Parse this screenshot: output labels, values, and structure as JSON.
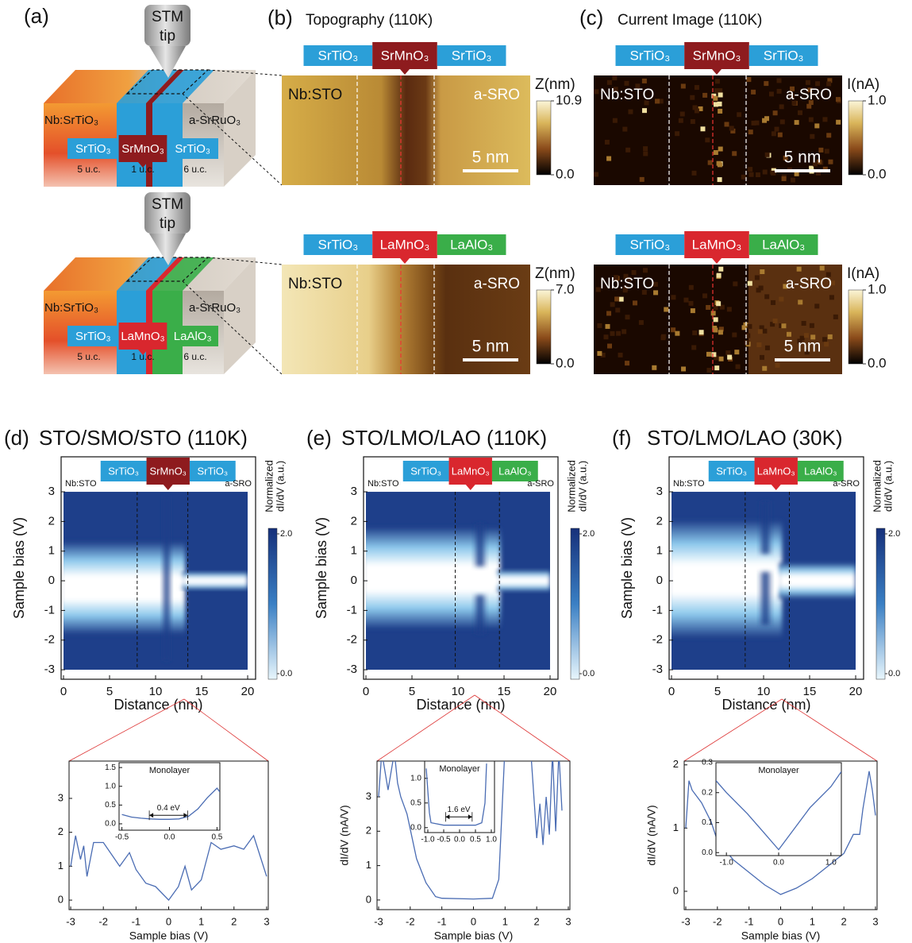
{
  "figure": {
    "a": {
      "label": "(a)",
      "rows": [
        {
          "stm": "STM",
          "tip": "tip",
          "left": "Nb:SrTiO₃",
          "right": "a-SrRuO₃",
          "layers": [
            "SrTiO₃",
            "SrMnO₃",
            "SrTiO₃"
          ],
          "colors": [
            "#2b9fd8",
            "#8e1b1e",
            "#2b9fd8"
          ],
          "thickness": [
            "5 u.c.",
            "1 u.c.",
            "6 u.c."
          ]
        },
        {
          "stm": "STM",
          "tip": "tip",
          "left": "Nb:SrTiO₃",
          "right": "a-SrRuO₃",
          "layers": [
            "SrTiO₃",
            "LaMnO₃",
            "LaAlO₃"
          ],
          "colors": [
            "#2b9fd8",
            "#d9272e",
            "#3aae49"
          ],
          "thickness": [
            "5 u.c.",
            "1 u.c.",
            "6 u.c."
          ]
        }
      ]
    },
    "images": [
      {
        "label": "(b)",
        "title": "Topography (110K)",
        "rows": [
          {
            "layers": [
              "SrTiO₃",
              "SrMnO₃",
              "SrTiO₃"
            ],
            "colors": [
              "#2b9fd8",
              "#8e1b1e",
              "#2b9fd8"
            ],
            "left": "Nb:STO",
            "right": "a-SRO",
            "scale": "5 nm",
            "cbar_label": "Z(nm)",
            "cbar_ticks": [
              {
                "value": 10.9,
                "label": "10.9"
              },
              {
                "value": 0,
                "label": "0.0"
              }
            ]
          },
          {
            "layers": [
              "SrTiO₃",
              "LaMnO₃",
              "LaAlO₃"
            ],
            "colors": [
              "#2b9fd8",
              "#d9272e",
              "#3aae49"
            ],
            "left": "Nb:STO",
            "right": "a-SRO",
            "scale": "5 nm",
            "cbar_label": "Z(nm)",
            "cbar_ticks": [
              {
                "value": 7.0,
                "label": "7.0"
              },
              {
                "value": 0,
                "label": "0.0"
              }
            ]
          }
        ]
      },
      {
        "label": "(c)",
        "title": "Current Image (110K)",
        "rows": [
          {
            "layers": [
              "SrTiO₃",
              "SrMnO₃",
              "SrTiO₃"
            ],
            "colors": [
              "#2b9fd8",
              "#8e1b1e",
              "#2b9fd8"
            ],
            "left": "Nb:STO",
            "right": "a-SRO",
            "scale": "5 nm",
            "cbar_label": "I(nA)",
            "cbar_ticks": [
              {
                "value": 1.0,
                "label": "1.0"
              },
              {
                "value": 0,
                "label": "0.0"
              }
            ]
          },
          {
            "layers": [
              "SrTiO₃",
              "LaMnO₃",
              "LaAlO₃"
            ],
            "colors": [
              "#2b9fd8",
              "#d9272e",
              "#3aae49"
            ],
            "left": "Nb:STO",
            "right": "a-SRO",
            "scale": "5 nm",
            "cbar_label": "I(nA)",
            "cbar_ticks": [
              {
                "value": 1.0,
                "label": "1.0"
              },
              {
                "value": 0,
                "label": "0.0"
              }
            ]
          }
        ]
      }
    ],
    "maps": [
      {
        "label": "(d)",
        "title": "STO/SMO/STO (110K)",
        "layers": [
          "SrTiO₃",
          "SrMnO₃",
          "SrTiO₃"
        ],
        "colors": [
          "#2b9fd8",
          "#8e1b1e",
          "#2b9fd8"
        ],
        "left": "Nb:STO",
        "right": "a-SRO",
        "xlabel": "Distance (nm)",
        "ylabel": "Sample bias (V)",
        "xlim": [
          -0.26,
          20.86
        ],
        "ylim": [
          -3.32,
          4.18
        ],
        "xticks": [
          0,
          5,
          10,
          15,
          20
        ],
        "yticks": [
          3,
          2,
          1,
          0,
          -1,
          -2,
          -3
        ],
        "cbar_label": [
          "Normalized",
          "dI/dV (a.u.)"
        ],
        "cbar_ticks": [
          {
            "value": 2,
            "label": "2.0"
          },
          {
            "value": 0,
            "label": "0.0"
          }
        ]
      },
      {
        "label": "(e)",
        "title": "STO/LMO/LAO (110K)",
        "layers": [
          "SrTiO₃",
          "LaMnO₃",
          "LaAlO₃"
        ],
        "colors": [
          "#2b9fd8",
          "#d9272e",
          "#3aae49"
        ],
        "left": "Nb:STO",
        "right": "a-SRO",
        "xlabel": "Distance (nm)",
        "ylabel": "Sample bias (V)",
        "xlim": [
          -0.26,
          20.86
        ],
        "ylim": [
          -3.32,
          4.18
        ],
        "xticks": [
          0,
          5,
          10,
          15,
          20
        ],
        "yticks": [
          3,
          2,
          1,
          0,
          -1,
          -2,
          -3
        ],
        "cbar_label": [
          "Normalized",
          "dI/dV (a.u.)"
        ],
        "cbar_ticks": [
          {
            "value": 2,
            "label": "2.0"
          },
          {
            "value": 0,
            "label": "0.0"
          }
        ]
      },
      {
        "label": "(f)",
        "title": "STO/LMO/LAO (30K)",
        "layers": [
          "SrTiO₃",
          "LaMnO₃",
          "LaAlO₃"
        ],
        "colors": [
          "#2b9fd8",
          "#d9272e",
          "#3aae49"
        ],
        "left": "Nb:STO",
        "right": "a-SRO",
        "xlabel": "Distance (nm)",
        "ylabel": "Sample bias (V)",
        "xlim": [
          -0.26,
          20.86
        ],
        "ylim": [
          -3.32,
          4.18
        ],
        "xticks": [
          0,
          5,
          10,
          15,
          20
        ],
        "yticks": [
          3,
          2,
          1,
          0,
          -1,
          -2,
          -3
        ],
        "cbar_label": [
          "Normalized",
          "dI/dV (a.u.)"
        ],
        "cbar_ticks": [
          {
            "value": 2,
            "label": "2.0"
          },
          {
            "value": 0,
            "label": "0.0"
          }
        ]
      }
    ]
  },
  "chart_data": [
    {
      "type": "line",
      "xlabel": "Sample bias (V)",
      "x": [
        -3,
        -2.85,
        -2.7,
        -2.6,
        -2.5,
        -2.3,
        -2.0,
        -1.5,
        -1.2,
        -1.0,
        -0.7,
        -0.4,
        0,
        0.3,
        0.5,
        0.7,
        1.0,
        1.3,
        1.6,
        2.0,
        2.3,
        2.6,
        2.8,
        3
      ],
      "series": [
        {
          "color": "#4a6cb3",
          "values": [
            1.0,
            1.9,
            1.2,
            1.6,
            0.7,
            1.7,
            1.7,
            1.0,
            1.4,
            0.9,
            0.5,
            0.4,
            0.0,
            0.4,
            1.0,
            0.3,
            0.6,
            1.7,
            1.5,
            1.6,
            1.5,
            1.9,
            1.3,
            0.7
          ]
        }
      ],
      "xlim": [
        -3.05,
        3.05
      ],
      "ylim": [
        -0.28,
        4.1
      ],
      "xticks": [
        -3,
        -2,
        -1,
        0,
        1,
        2,
        3
      ],
      "yticks": [
        0,
        1,
        2,
        3
      ]
    },
    {
      "type": "line",
      "title": "Monolayer",
      "annotation": "0.4 eV",
      "x": [
        -0.5,
        -0.4,
        -0.3,
        -0.2,
        -0.1,
        0,
        0.1,
        0.2,
        0.3,
        0.4,
        0.5,
        0.53
      ],
      "series": [
        {
          "color": "#4a6cb3",
          "values": [
            0.25,
            0.18,
            0.15,
            0.13,
            0.12,
            0.12,
            0.13,
            0.2,
            0.4,
            0.7,
            0.95,
            0.85
          ]
        }
      ],
      "xlim": [
        -0.53,
        0.53
      ],
      "ylim": [
        -0.17,
        1.63
      ],
      "xticks": [
        -0.5,
        {
          "value": 0,
          "label": "0.0"
        },
        0.5
      ],
      "yticks": [
        {
          "value": 0,
          "label": "0.0"
        },
        0.5,
        {
          "value": 1,
          "label": "1.0"
        },
        1.5
      ]
    },
    {
      "type": "line",
      "xlabel": "Sample bias (V)",
      "ylabel": "dI/dV (nA/V)",
      "x": [
        -3,
        -2.9,
        -2.7,
        -2.5,
        -2.4,
        -2.3,
        -2.1,
        -1.8,
        -1.5,
        -1.2,
        -1.0,
        0,
        0.6,
        0.8,
        1.0,
        1.8,
        2.0,
        2.1,
        2.2,
        2.3,
        2.4,
        2.5,
        2.6,
        2.7,
        2.8
      ],
      "series": [
        {
          "color": "#4a6cb3",
          "values": [
            3.0,
            4.3,
            3.2,
            4.3,
            3.4,
            3.0,
            2.5,
            1.2,
            0.5,
            0.1,
            0.05,
            0.03,
            0.05,
            0.6,
            4.5,
            4.5,
            1.8,
            2.8,
            1.6,
            3.0,
            1.9,
            4.3,
            2.0,
            4.3,
            2.6
          ]
        }
      ],
      "xlim": [
        -3.05,
        3.05
      ],
      "ylim": [
        -0.28,
        4.04
      ],
      "xticks": [
        -3,
        -2,
        -1,
        0,
        1,
        2,
        3
      ],
      "yticks": [
        0,
        1,
        2,
        3
      ]
    },
    {
      "type": "line",
      "title": "Monolayer",
      "annotation": "1.6 eV",
      "x": [
        -1.05,
        -0.95,
        -0.9,
        -0.5,
        0,
        0.5,
        0.7,
        0.8,
        0.85
      ],
      "series": [
        {
          "color": "#4a6cb3",
          "values": [
            1.2,
            0.3,
            0.1,
            0.05,
            0.05,
            0.05,
            0.1,
            0.5,
            1.3
          ]
        }
      ],
      "xlim": [
        -1.1,
        1.1
      ],
      "ylim": [
        -0.1,
        1.35
      ],
      "xticks": [
        {
          "value": -1,
          "label": "-1.0"
        },
        -0.5,
        {
          "value": 0,
          "label": "0.0"
        },
        0.5,
        {
          "value": 1,
          "label": "1.0"
        }
      ],
      "yticks": [
        {
          "value": 0,
          "label": "0.0"
        },
        0.5,
        {
          "value": 1,
          "label": "1.0"
        }
      ]
    },
    {
      "type": "line",
      "xlabel": "Sample bias (V)",
      "ylabel": "dI/dV (nA/V)",
      "x": [
        -3,
        -2.9,
        -2.8,
        -2.5,
        -2.2,
        -2.0,
        -1.5,
        -1.0,
        -0.5,
        0,
        0.5,
        1.0,
        1.5,
        2.0,
        2.3,
        2.5,
        2.6,
        2.8,
        2.9,
        3
      ],
      "series": [
        {
          "color": "#4a6cb3",
          "values": [
            1.0,
            1.75,
            1.6,
            1.4,
            1.1,
            0.8,
            0.5,
            0.3,
            0.1,
            -0.05,
            0.05,
            0.2,
            0.4,
            0.6,
            0.9,
            0.9,
            1.3,
            1.9,
            1.6,
            1.2
          ]
        }
      ],
      "xlim": [
        -3.05,
        3.05
      ],
      "ylim": [
        -0.29,
        2.06
      ],
      "xticks": [
        -3,
        -2,
        -1,
        0,
        1,
        2,
        3
      ],
      "yticks": [
        0,
        1,
        2
      ]
    },
    {
      "type": "line",
      "title": "Monolayer",
      "x": [
        -1.2,
        -1.0,
        -0.6,
        -0.3,
        0,
        0.3,
        0.6,
        1.0,
        1.2
      ],
      "series": [
        {
          "color": "#4a6cb3",
          "values": [
            0.24,
            0.2,
            0.13,
            0.07,
            0.01,
            0.08,
            0.15,
            0.22,
            0.27
          ]
        }
      ],
      "xlim": [
        -1.2,
        1.2
      ],
      "ylim": [
        -0.01,
        0.3
      ],
      "xticks": [
        {
          "value": -1,
          "label": "-1.0"
        },
        {
          "value": 0,
          "label": "0.0"
        },
        {
          "value": 1,
          "label": "1.0"
        }
      ],
      "yticks": [
        {
          "value": 0,
          "label": "0.0"
        },
        0.1,
        0.2,
        0.3
      ]
    }
  ]
}
